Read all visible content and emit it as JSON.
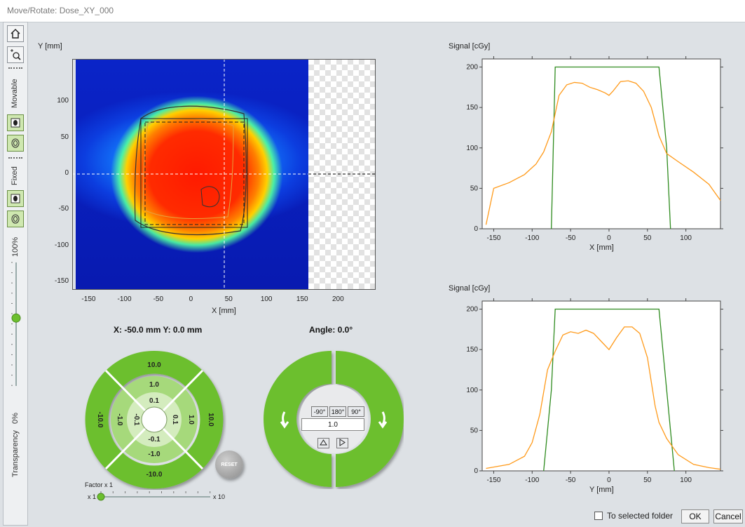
{
  "window": {
    "title": "Move/Rotate: Dose_XY_000"
  },
  "sidebar": {
    "movable_label": "Movable",
    "fixed_label": "Fixed",
    "transparency_label": "Transparency",
    "transparency_max": "100%",
    "transparency_min": "0%",
    "transparency_value": 0.4
  },
  "dose_map": {
    "y_axis_label": "Y [mm]",
    "x_axis_label": "X [mm]",
    "y_ticks": [
      "100",
      "50",
      "0",
      "-50",
      "-100",
      "-150"
    ],
    "x_ticks": [
      "-150",
      "-100",
      "-50",
      "0",
      "50",
      "100",
      "150",
      "200"
    ],
    "crosshair": {
      "x": 40,
      "y": 0
    }
  },
  "position_readout": "X: -50.0 mm Y: 0.0 mm",
  "angle_readout": "Angle: 0.0°",
  "translate_pad": {
    "outer_top": "10.0",
    "outer_bottom": "-10.0",
    "outer_left": "-10.0",
    "outer_right": "10.0",
    "mid_top": "1.0",
    "mid_bottom": "-1.0",
    "mid_left": "-1.0",
    "mid_right": "1.0",
    "inner_top": "0.1",
    "inner_bottom": "-0.1",
    "inner_left": "-0.1",
    "inner_right": "0.1"
  },
  "reset_label": "RESET",
  "factor": {
    "label": "Factor x 1",
    "min_label": "x 1",
    "max_label": "x 10",
    "value": 1
  },
  "rotate_pad": {
    "btn_neg90": "-90°",
    "btn_180": "180°",
    "btn_90": "90°",
    "angle_step": "1.0"
  },
  "profile_x": {
    "ylabel": "Signal [cGy]",
    "xlabel": "X [mm]",
    "y_ticks": [
      "200",
      "150",
      "100",
      "50",
      "0"
    ],
    "x_ticks": [
      "-150",
      "-100",
      "-50",
      "0",
      "50",
      "100"
    ]
  },
  "profile_y": {
    "ylabel": "Signal [cGy]",
    "xlabel": "Y [mm]",
    "y_ticks": [
      "200",
      "150",
      "100",
      "50",
      "0"
    ],
    "x_ticks": [
      "-150",
      "-100",
      "-50",
      "0",
      "50",
      "100"
    ]
  },
  "footer": {
    "to_selected_folder": "To selected folder",
    "ok": "OK",
    "cancel": "Cancel"
  },
  "colors": {
    "accent_green": "#6cbf2e",
    "profile_green": "#2e8b1e",
    "profile_orange": "#ff9a1a"
  },
  "chart_data": [
    {
      "type": "line",
      "ylabel": "Signal [cGy]",
      "xlabel": "X [mm]",
      "xlim": [
        -165,
        145
      ],
      "ylim": [
        0,
        210
      ],
      "series": [
        {
          "x": [
            -75,
            -70,
            60,
            65,
            75,
            80
          ],
          "y": [
            0,
            200,
            200,
            200,
            100,
            0
          ]
        },
        {
          "x": [
            -160,
            -150,
            -130,
            -110,
            -95,
            -85,
            -75,
            -65,
            -55,
            -45,
            -35,
            -25,
            -15,
            -5,
            0,
            5,
            15,
            25,
            35,
            45,
            55,
            65,
            75,
            90,
            110,
            130,
            145
          ],
          "y": [
            5,
            50,
            57,
            67,
            80,
            95,
            120,
            165,
            178,
            181,
            180,
            175,
            172,
            168,
            165,
            170,
            182,
            183,
            180,
            170,
            150,
            115,
            93,
            83,
            70,
            55,
            35
          ]
        }
      ]
    },
    {
      "type": "line",
      "ylabel": "Signal [cGy]",
      "xlabel": "Y [mm]",
      "xlim": [
        -165,
        145
      ],
      "ylim": [
        0,
        210
      ],
      "series": [
        {
          "x": [
            -85,
            -75,
            -70,
            60,
            65,
            75,
            85
          ],
          "y": [
            0,
            100,
            200,
            200,
            200,
            100,
            0
          ]
        },
        {
          "x": [
            -160,
            -130,
            -110,
            -100,
            -90,
            -80,
            -70,
            -60,
            -50,
            -40,
            -30,
            -20,
            -10,
            0,
            10,
            20,
            30,
            40,
            50,
            55,
            60,
            65,
            75,
            90,
            110,
            130,
            145
          ],
          "y": [
            3,
            8,
            18,
            35,
            70,
            125,
            148,
            168,
            172,
            170,
            174,
            170,
            160,
            150,
            165,
            178,
            178,
            170,
            140,
            110,
            80,
            60,
            40,
            20,
            8,
            4,
            2
          ]
        }
      ]
    }
  ]
}
